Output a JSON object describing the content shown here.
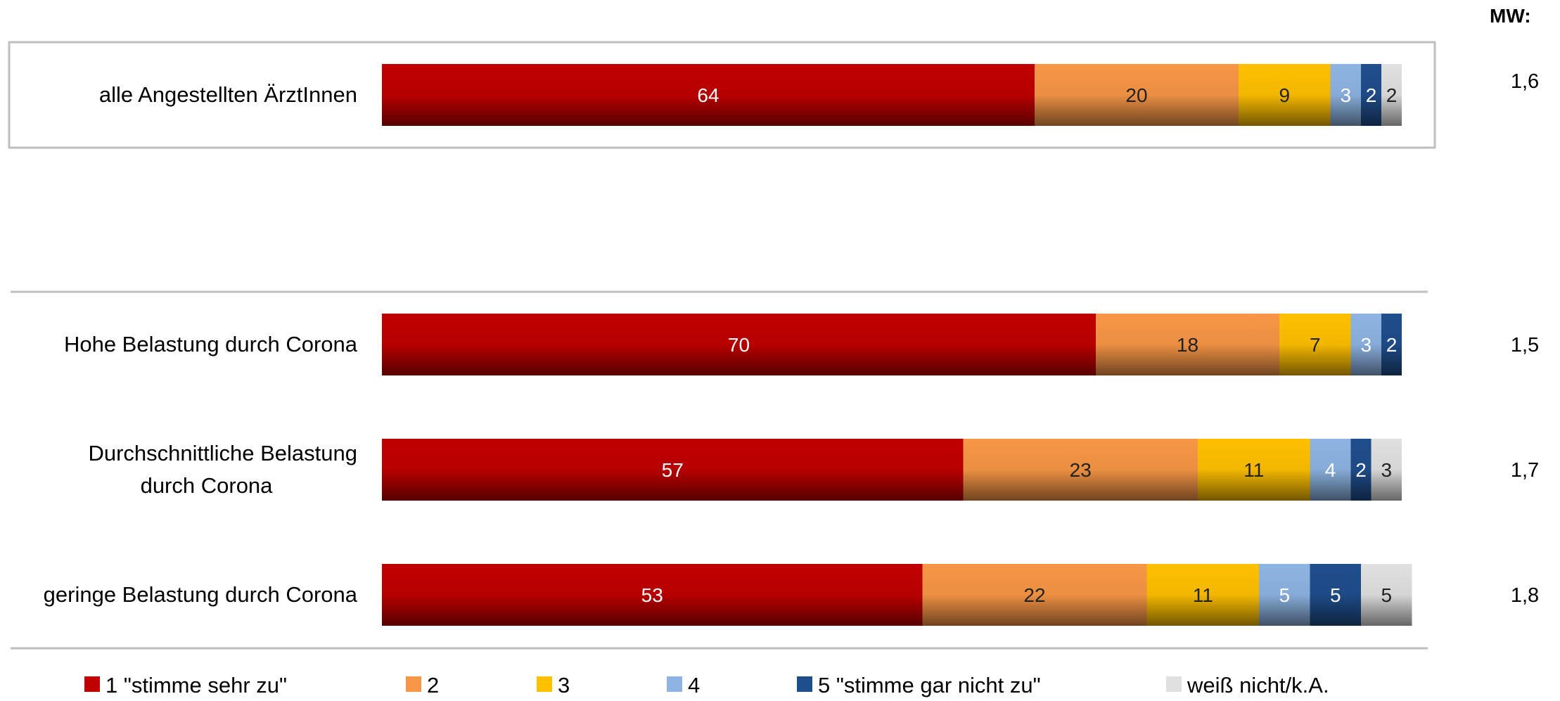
{
  "chart_data": {
    "type": "bar",
    "orientation": "horizontal",
    "stacked": true,
    "mw_header": "MW:",
    "categories": [
      "alle Angestellten  ÄrztInnen",
      "Hohe Belastung durch Corona",
      "Durchschnittliche Belastung durch Corona",
      "geringe Belastung durch Corona"
    ],
    "category_lines": [
      [
        "alle Angestellten  ÄrztInnen"
      ],
      [
        "Hohe Belastung durch Corona"
      ],
      [
        "Durchschnittliche Belastung",
        "durch Corona"
      ],
      [
        "geringe Belastung durch Corona"
      ]
    ],
    "mw_values": [
      "1,6",
      "1,5",
      "1,7",
      "1,8"
    ],
    "series": [
      {
        "name": "1 \"stimme sehr zu\"",
        "color": "#c00000",
        "values": [
          64,
          70,
          57,
          53
        ]
      },
      {
        "name": "2",
        "color": "#f79646",
        "values": [
          20,
          18,
          23,
          22
        ]
      },
      {
        "name": "3",
        "color": "#ffc000",
        "values": [
          9,
          7,
          11,
          11
        ]
      },
      {
        "name": "4",
        "color": "#8db4e2",
        "values": [
          3,
          3,
          4,
          5
        ]
      },
      {
        "name": "5 \"stimme gar nicht zu\"",
        "color": "#1f4e8c",
        "values": [
          2,
          2,
          2,
          5
        ]
      },
      {
        "name": "weiß nicht/k.A.",
        "color": "#e0e0e0",
        "values": [
          2,
          0,
          3,
          5
        ]
      }
    ],
    "label_colors": [
      "#ffffff",
      "#222222",
      "#222222",
      "#ffffff",
      "#ffffff",
      "#222222"
    ],
    "xlim": [
      0,
      100
    ],
    "grid": false,
    "legend_position": "bottom",
    "highlighted_group": "alle Angestellten  ÄrztInnen"
  }
}
